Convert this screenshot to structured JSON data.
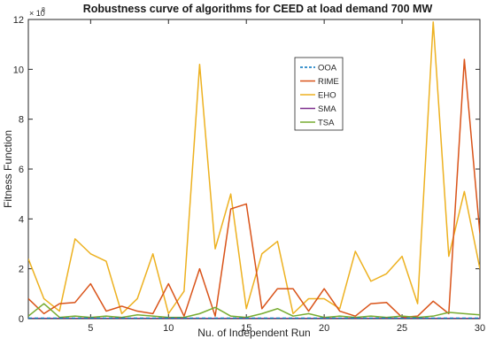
{
  "chart_data": {
    "type": "line",
    "title": "Robustness curve of algorithms for CEED at load demand 700 MW",
    "xlabel": "Nu. of Independent Run",
    "ylabel": "Fitness Function",
    "y_multiplier_label": "× 10",
    "y_multiplier_exponent": "8",
    "xlim": [
      1,
      30
    ],
    "ylim": [
      0,
      12
    ],
    "x_ticks": [
      5,
      10,
      15,
      20,
      25,
      30
    ],
    "y_ticks": [
      0,
      2,
      4,
      6,
      8,
      10,
      12
    ],
    "legend_placement": "upper-center-right",
    "grid": false,
    "x": [
      1,
      2,
      3,
      4,
      5,
      6,
      7,
      8,
      9,
      10,
      11,
      12,
      13,
      14,
      15,
      16,
      17,
      18,
      19,
      20,
      21,
      22,
      23,
      24,
      25,
      26,
      27,
      28,
      29,
      30
    ],
    "series": [
      {
        "name": "OOA",
        "color": "#0072BD",
        "dashed": true,
        "values": [
          0.02,
          0.02,
          0.02,
          0.02,
          0.02,
          0.02,
          0.02,
          0.02,
          0.02,
          0.02,
          0.02,
          0.02,
          0.02,
          0.02,
          0.02,
          0.02,
          0.02,
          0.02,
          0.02,
          0.02,
          0.02,
          0.02,
          0.02,
          0.02,
          0.02,
          0.02,
          0.02,
          0.02,
          0.02,
          0.02
        ]
      },
      {
        "name": "RIME",
        "color": "#D95319",
        "values": [
          0.8,
          0.2,
          0.6,
          0.65,
          1.4,
          0.3,
          0.5,
          0.3,
          0.2,
          1.4,
          0.1,
          2.0,
          0.1,
          4.4,
          4.6,
          0.4,
          1.2,
          1.2,
          0.3,
          1.2,
          0.3,
          0.1,
          0.6,
          0.65,
          0.05,
          0.1,
          0.7,
          0.2,
          10.4,
          3.4
        ]
      },
      {
        "name": "EHO",
        "color": "#EDB120",
        "values": [
          2.4,
          0.8,
          0.3,
          3.2,
          2.6,
          2.3,
          0.2,
          0.8,
          2.6,
          0.2,
          1.1,
          10.2,
          2.8,
          5.0,
          0.4,
          2.6,
          3.1,
          0.2,
          0.8,
          0.8,
          0.4,
          2.7,
          1.5,
          1.8,
          2.5,
          0.6,
          11.9,
          2.5,
          5.1,
          2.0
        ]
      },
      {
        "name": "SMA",
        "color": "#7E2F8E",
        "values": [
          0.01,
          0.01,
          0.01,
          0.01,
          0.01,
          0.01,
          0.01,
          0.01,
          0.01,
          0.01,
          0.01,
          0.01,
          0.01,
          0.01,
          0.01,
          0.01,
          0.01,
          0.01,
          0.01,
          0.01,
          0.01,
          0.01,
          0.01,
          0.01,
          0.01,
          0.01,
          0.01,
          0.01,
          0.01,
          0.01
        ]
      },
      {
        "name": "TSA",
        "color": "#77AC30",
        "values": [
          0.1,
          0.6,
          0.05,
          0.1,
          0.05,
          0.1,
          0.05,
          0.15,
          0.1,
          0.05,
          0.05,
          0.2,
          0.45,
          0.1,
          0.05,
          0.2,
          0.4,
          0.1,
          0.2,
          0.05,
          0.1,
          0.05,
          0.1,
          0.05,
          0.1,
          0.05,
          0.1,
          0.25,
          0.2,
          0.15
        ]
      }
    ]
  }
}
